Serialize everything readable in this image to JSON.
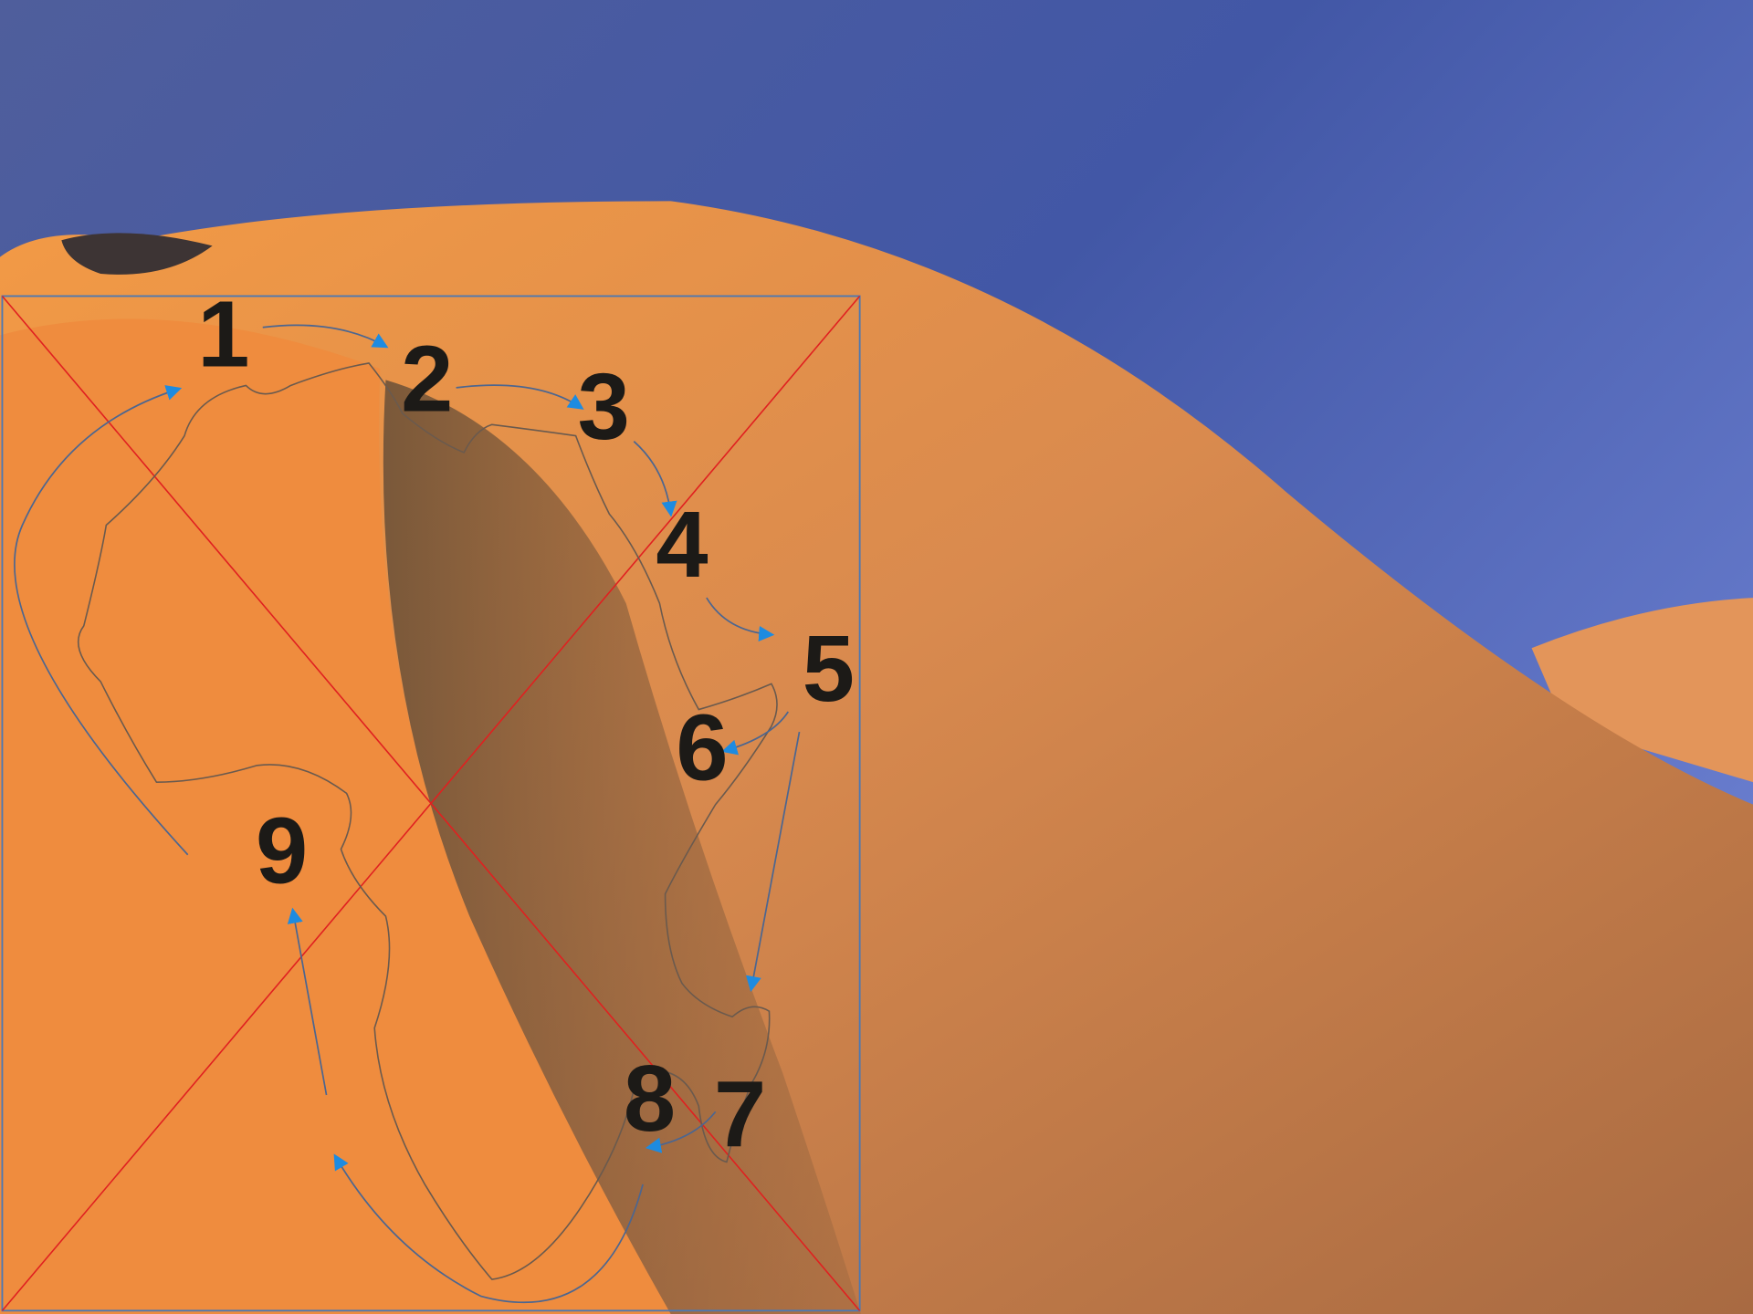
{
  "labels": [
    "1",
    "2",
    "3",
    "4",
    "5",
    "6",
    "7",
    "8",
    "9"
  ]
}
